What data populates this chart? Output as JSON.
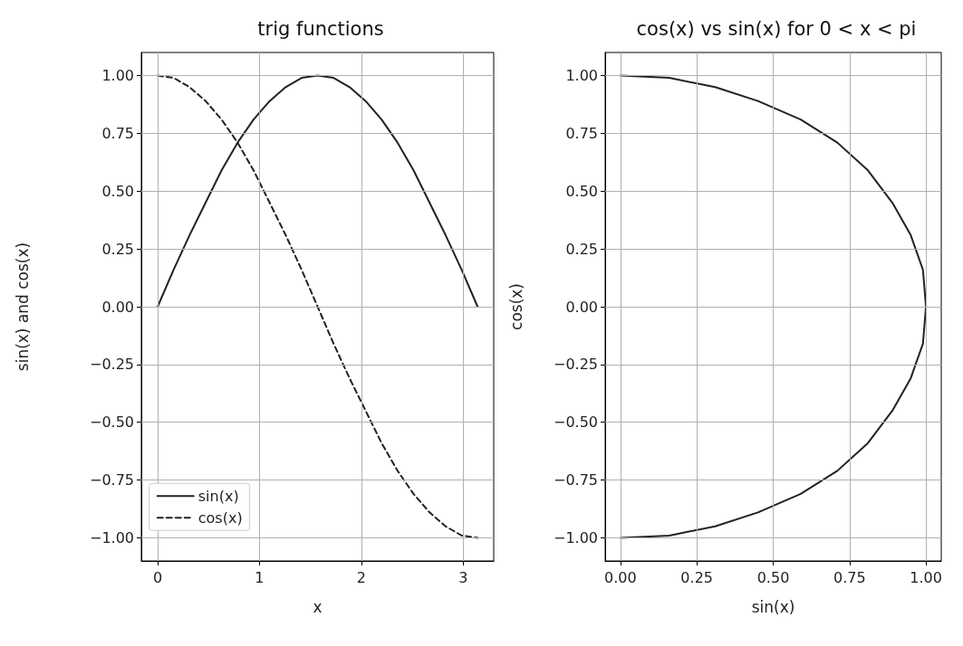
{
  "chart_data": [
    {
      "type": "line",
      "title": "trig functions",
      "xlabel": "x",
      "ylabel": "sin(x) and cos(x)",
      "x": [
        0,
        0.157,
        0.314,
        0.471,
        0.628,
        0.785,
        0.942,
        1.1,
        1.257,
        1.414,
        1.571,
        1.728,
        1.885,
        2.042,
        2.199,
        2.356,
        2.513,
        2.67,
        2.827,
        2.985,
        3.142
      ],
      "series": [
        {
          "name": "sin(x)",
          "color": "#222222",
          "line_style": "solid",
          "values": [
            0,
            0.16,
            0.31,
            0.45,
            0.59,
            0.71,
            0.81,
            0.89,
            0.95,
            0.99,
            1,
            0.99,
            0.95,
            0.89,
            0.81,
            0.71,
            0.59,
            0.45,
            0.31,
            0.16,
            0
          ]
        },
        {
          "name": "cos(x)",
          "color": "#222222",
          "line_style": "dashed",
          "values": [
            1,
            0.99,
            0.95,
            0.89,
            0.81,
            0.71,
            0.59,
            0.45,
            0.31,
            0.16,
            0,
            -0.16,
            -0.31,
            -0.45,
            -0.59,
            -0.71,
            -0.81,
            -0.89,
            -0.95,
            -0.99,
            -1
          ]
        }
      ],
      "xlim": [
        -0.16,
        3.3
      ],
      "xticks": [
        0,
        1,
        2,
        3
      ],
      "ylim": [
        -1.1,
        1.1
      ],
      "yticks": [
        {
          "value": -1,
          "label": "−1.00"
        },
        {
          "value": -0.75,
          "label": "−0.75"
        },
        {
          "value": -0.5,
          "label": "−0.50"
        },
        {
          "value": -0.25,
          "label": "−0.25"
        },
        {
          "value": 0,
          "label": "0.00"
        },
        {
          "value": 0.25,
          "label": "0.25"
        },
        {
          "value": 0.5,
          "label": "0.50"
        },
        {
          "value": 0.75,
          "label": "0.75"
        },
        {
          "value": 1,
          "label": "1.00"
        }
      ],
      "grid": true,
      "legend": "bottom left"
    },
    {
      "type": "line",
      "title": "cos(x) vs sin(x) for 0 < x < pi",
      "xlabel": "sin(x)",
      "ylabel": "cos(x)",
      "series": [
        {
          "color": "#222222",
          "line_style": "solid",
          "x": [
            0,
            0.16,
            0.31,
            0.45,
            0.59,
            0.71,
            0.81,
            0.89,
            0.95,
            0.99,
            1,
            0.99,
            0.95,
            0.89,
            0.81,
            0.71,
            0.59,
            0.45,
            0.31,
            0.16,
            0
          ],
          "values": [
            1,
            0.99,
            0.95,
            0.89,
            0.81,
            0.71,
            0.59,
            0.45,
            0.31,
            0.16,
            0,
            -0.16,
            -0.31,
            -0.45,
            -0.59,
            -0.71,
            -0.81,
            -0.89,
            -0.95,
            -0.99,
            -1
          ]
        }
      ],
      "xlim": [
        -0.05,
        1.05
      ],
      "xticks": [
        {
          "value": 0,
          "label": "0.00"
        },
        {
          "value": 0.25,
          "label": "0.25"
        },
        {
          "value": 0.5,
          "label": "0.50"
        },
        {
          "value": 0.75,
          "label": "0.75"
        },
        {
          "value": 1,
          "label": "1.00"
        }
      ],
      "ylim": [
        -1.1,
        1.1
      ],
      "yticks": [
        {
          "value": -1,
          "label": "−1.00"
        },
        {
          "value": -0.75,
          "label": "−0.75"
        },
        {
          "value": -0.5,
          "label": "−0.50"
        },
        {
          "value": -0.25,
          "label": "−0.25"
        },
        {
          "value": 0,
          "label": "0.00"
        },
        {
          "value": 0.25,
          "label": "0.25"
        },
        {
          "value": 0.5,
          "label": "0.50"
        },
        {
          "value": 0.75,
          "label": "0.75"
        },
        {
          "value": 1,
          "label": "1.00"
        }
      ],
      "grid": true,
      "legend": false
    }
  ]
}
